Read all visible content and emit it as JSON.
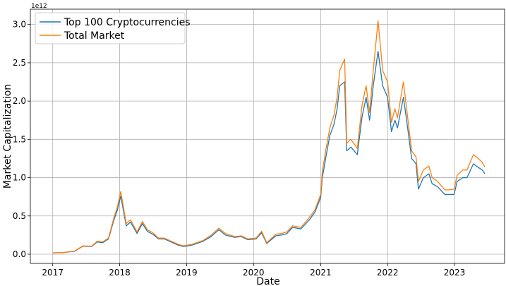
{
  "chart_data": {
    "type": "line",
    "xlabel": "Date",
    "ylabel": "Market Capitalization",
    "y_offset_text": "1e12",
    "xlim": [
      "2016-09-01",
      "2023-10-01"
    ],
    "ylim": [
      -0.12,
      3.2
    ],
    "x_ticks": [
      "2017",
      "2018",
      "2019",
      "2020",
      "2021",
      "2022",
      "2023"
    ],
    "y_ticks": [
      "0.0",
      "0.5",
      "1.0",
      "1.5",
      "2.0",
      "2.5",
      "3.0"
    ],
    "grid": true,
    "legend_position": "top-left",
    "x": [
      "2017-01-01",
      "2017-03-01",
      "2017-05-01",
      "2017-06-15",
      "2017-08-01",
      "2017-09-01",
      "2017-10-01",
      "2017-11-01",
      "2017-12-01",
      "2017-12-20",
      "2018-01-07",
      "2018-02-06",
      "2018-03-01",
      "2018-04-06",
      "2018-05-05",
      "2018-06-01",
      "2018-07-01",
      "2018-08-01",
      "2018-09-01",
      "2018-11-15",
      "2018-12-15",
      "2019-02-01",
      "2019-04-01",
      "2019-05-15",
      "2019-06-26",
      "2019-08-01",
      "2019-09-20",
      "2019-10-26",
      "2019-12-01",
      "2020-01-15",
      "2020-02-14",
      "2020-03-13",
      "2020-05-01",
      "2020-06-01",
      "2020-07-01",
      "2020-08-01",
      "2020-09-15",
      "2020-11-01",
      "2020-12-01",
      "2021-01-01",
      "2021-01-10",
      "2021-02-01",
      "2021-02-20",
      "2021-03-15",
      "2021-04-01",
      "2021-04-15",
      "2021-05-12",
      "2021-05-23",
      "2021-06-15",
      "2021-07-20",
      "2021-08-15",
      "2021-09-06",
      "2021-09-25",
      "2021-10-15",
      "2021-11-10",
      "2021-12-05",
      "2022-01-01",
      "2022-01-22",
      "2022-02-10",
      "2022-02-24",
      "2022-03-28",
      "2022-04-15",
      "2022-05-12",
      "2022-06-05",
      "2022-06-18",
      "2022-07-15",
      "2022-08-14",
      "2022-09-01",
      "2022-10-01",
      "2022-11-09",
      "2022-12-01",
      "2022-12-30",
      "2023-01-15",
      "2023-02-15",
      "2023-03-10",
      "2023-04-14",
      "2023-05-01",
      "2023-06-01",
      "2023-06-15"
    ],
    "series": [
      {
        "name": "Top 100 Cryptocurrencies",
        "color": "#1f77b4",
        "values": [
          0.017,
          0.021,
          0.04,
          0.105,
          0.1,
          0.16,
          0.15,
          0.2,
          0.45,
          0.58,
          0.76,
          0.37,
          0.42,
          0.27,
          0.4,
          0.3,
          0.26,
          0.2,
          0.2,
          0.12,
          0.1,
          0.12,
          0.17,
          0.23,
          0.32,
          0.25,
          0.22,
          0.23,
          0.19,
          0.2,
          0.28,
          0.14,
          0.24,
          0.25,
          0.27,
          0.35,
          0.33,
          0.45,
          0.55,
          0.74,
          1.0,
          1.3,
          1.55,
          1.7,
          1.9,
          2.2,
          2.25,
          1.35,
          1.4,
          1.3,
          1.8,
          2.05,
          1.75,
          2.2,
          2.65,
          2.2,
          2.05,
          1.6,
          1.75,
          1.65,
          2.05,
          1.75,
          1.25,
          1.18,
          0.85,
          1.0,
          1.05,
          0.92,
          0.88,
          0.78,
          0.78,
          0.78,
          0.95,
          1.0,
          1.0,
          1.18,
          1.15,
          1.1,
          1.05
        ]
      },
      {
        "name": "Total Market",
        "color": "#ff7f0e",
        "values": [
          0.018,
          0.022,
          0.042,
          0.11,
          0.105,
          0.17,
          0.16,
          0.21,
          0.48,
          0.62,
          0.82,
          0.4,
          0.45,
          0.29,
          0.43,
          0.32,
          0.28,
          0.21,
          0.21,
          0.13,
          0.11,
          0.13,
          0.18,
          0.25,
          0.34,
          0.27,
          0.23,
          0.24,
          0.2,
          0.21,
          0.3,
          0.15,
          0.26,
          0.27,
          0.29,
          0.37,
          0.35,
          0.48,
          0.58,
          0.78,
          1.08,
          1.4,
          1.65,
          1.82,
          2.05,
          2.4,
          2.55,
          1.45,
          1.5,
          1.38,
          1.95,
          2.2,
          1.85,
          2.4,
          3.05,
          2.4,
          2.25,
          1.72,
          1.9,
          1.78,
          2.25,
          1.9,
          1.35,
          1.27,
          0.95,
          1.1,
          1.15,
          1.0,
          0.95,
          0.84,
          0.84,
          0.85,
          1.03,
          1.1,
          1.1,
          1.3,
          1.27,
          1.2,
          1.14
        ]
      }
    ]
  }
}
